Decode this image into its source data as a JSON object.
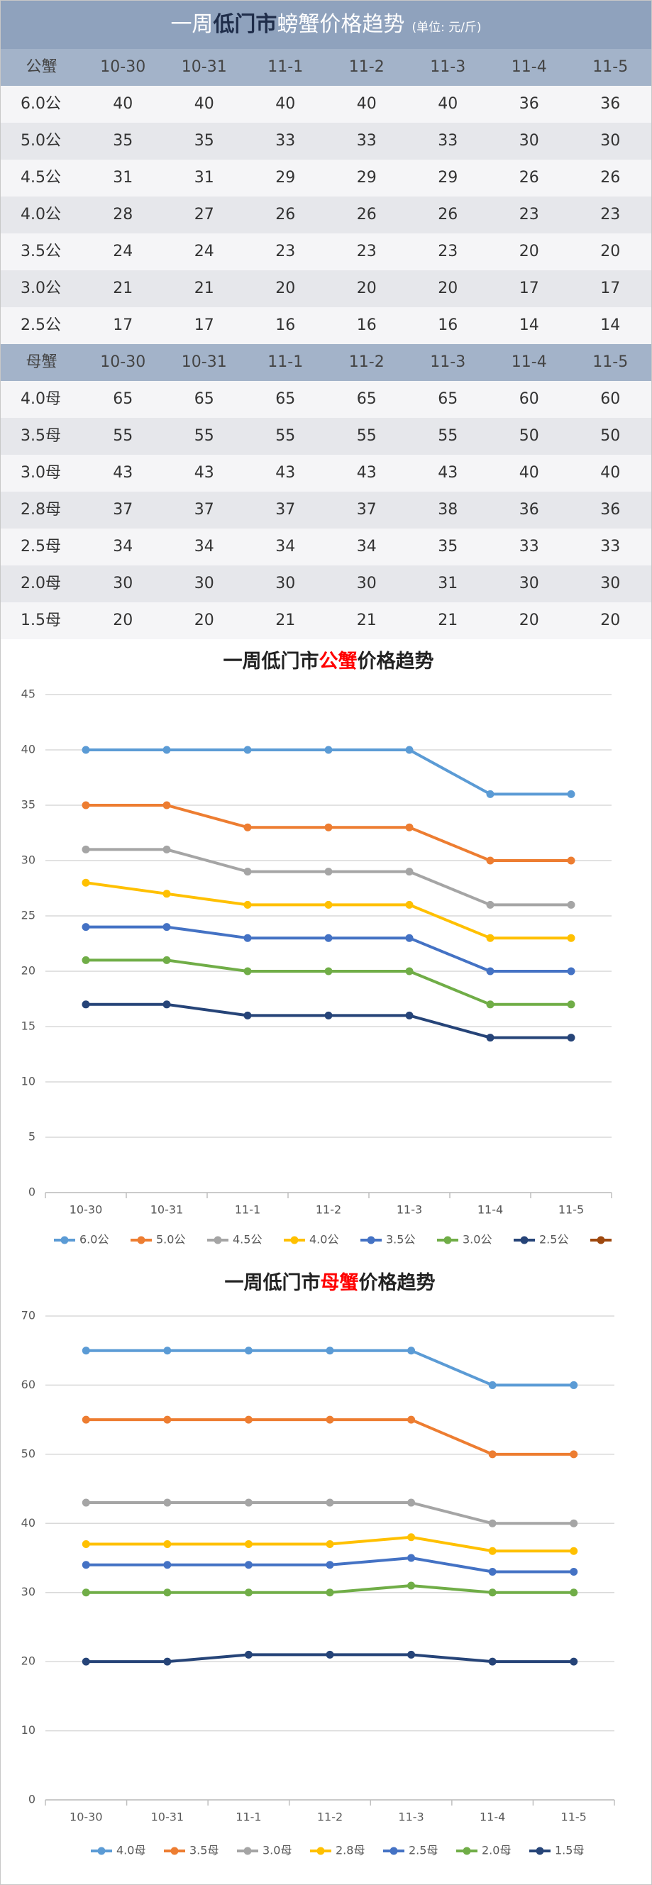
{
  "table": {
    "title": [
      "一周",
      "低门市",
      "螃蟹价格趋势"
    ],
    "unit": "(单位: 元/斤)",
    "sections": [
      {
        "columns": [
          "公蟹",
          "10-30",
          "10-31",
          "11-1",
          "11-2",
          "11-3",
          "11-4",
          "11-5"
        ],
        "rows": [
          {
            "label": "6.0公",
            "values": [
              40,
              40,
              40,
              40,
              40,
              36,
              36
            ]
          },
          {
            "label": "5.0公",
            "values": [
              35,
              35,
              33,
              33,
              33,
              30,
              30
            ]
          },
          {
            "label": "4.5公",
            "values": [
              31,
              31,
              29,
              29,
              29,
              26,
              26
            ]
          },
          {
            "label": "4.0公",
            "values": [
              28,
              27,
              26,
              26,
              26,
              23,
              23
            ]
          },
          {
            "label": "3.5公",
            "values": [
              24,
              24,
              23,
              23,
              23,
              20,
              20
            ]
          },
          {
            "label": "3.0公",
            "values": [
              21,
              21,
              20,
              20,
              20,
              17,
              17
            ]
          },
          {
            "label": "2.5公",
            "values": [
              17,
              17,
              16,
              16,
              16,
              14,
              14
            ]
          }
        ]
      },
      {
        "columns": [
          "母蟹",
          "10-30",
          "10-31",
          "11-1",
          "11-2",
          "11-3",
          "11-4",
          "11-5"
        ],
        "rows": [
          {
            "label": "4.0母",
            "values": [
              65,
              65,
              65,
              65,
              65,
              60,
              60
            ]
          },
          {
            "label": "3.5母",
            "values": [
              55,
              55,
              55,
              55,
              55,
              50,
              50
            ]
          },
          {
            "label": "3.0母",
            "values": [
              43,
              43,
              43,
              43,
              43,
              40,
              40
            ]
          },
          {
            "label": "2.8母",
            "values": [
              37,
              37,
              37,
              37,
              38,
              36,
              36
            ]
          },
          {
            "label": "2.5母",
            "values": [
              34,
              34,
              34,
              34,
              35,
              33,
              33
            ]
          },
          {
            "label": "2.0母",
            "values": [
              30,
              30,
              30,
              30,
              31,
              30,
              30
            ]
          },
          {
            "label": "1.5母",
            "values": [
              20,
              20,
              21,
              21,
              21,
              20,
              20
            ]
          }
        ]
      }
    ]
  },
  "chart_data": [
    {
      "type": "line",
      "title": [
        "一周低门市",
        "公蟹",
        "价格趋势"
      ],
      "categories": [
        "10-30",
        "10-31",
        "11-1",
        "11-2",
        "11-3",
        "11-4",
        "11-5"
      ],
      "series": [
        {
          "name": "6.0公",
          "color": "#5b9bd5",
          "values": [
            40,
            40,
            40,
            40,
            40,
            36,
            36
          ]
        },
        {
          "name": "5.0公",
          "color": "#ed7d31",
          "values": [
            35,
            35,
            33,
            33,
            33,
            30,
            30
          ]
        },
        {
          "name": "4.5公",
          "color": "#a5a5a5",
          "values": [
            31,
            31,
            29,
            29,
            29,
            26,
            26
          ]
        },
        {
          "name": "4.0公",
          "color": "#ffc000",
          "values": [
            28,
            27,
            26,
            26,
            26,
            23,
            23
          ]
        },
        {
          "name": "3.5公",
          "color": "#4472c4",
          "values": [
            24,
            24,
            23,
            23,
            23,
            20,
            20
          ]
        },
        {
          "name": "3.0公",
          "color": "#70ad47",
          "values": [
            21,
            21,
            20,
            20,
            20,
            17,
            17
          ]
        },
        {
          "name": "2.5公",
          "color": "#264478",
          "values": [
            17,
            17,
            16,
            16,
            16,
            14,
            14
          ]
        },
        {
          "name": null,
          "color": "#9e480e",
          "values": [
            null,
            null,
            null,
            null,
            null,
            null,
            null
          ]
        }
      ],
      "ylim": [
        0,
        45
      ],
      "yticks": [
        0,
        5,
        10,
        15,
        20,
        25,
        30,
        35,
        40,
        45
      ],
      "grid": true,
      "legend": "bottom"
    },
    {
      "type": "line",
      "title": [
        "一周低门市",
        "母蟹",
        "价格趋势"
      ],
      "categories": [
        "10-30",
        "10-31",
        "11-1",
        "11-2",
        "11-3",
        "11-4",
        "11-5"
      ],
      "series": [
        {
          "name": "4.0母",
          "color": "#5b9bd5",
          "values": [
            65,
            65,
            65,
            65,
            65,
            60,
            60
          ]
        },
        {
          "name": "3.5母",
          "color": "#ed7d31",
          "values": [
            55,
            55,
            55,
            55,
            55,
            50,
            50
          ]
        },
        {
          "name": "3.0母",
          "color": "#a5a5a5",
          "values": [
            43,
            43,
            43,
            43,
            43,
            40,
            40
          ]
        },
        {
          "name": "2.8母",
          "color": "#ffc000",
          "values": [
            37,
            37,
            37,
            37,
            38,
            36,
            36
          ]
        },
        {
          "name": "2.5母",
          "color": "#4472c4",
          "values": [
            34,
            34,
            34,
            34,
            35,
            33,
            33
          ]
        },
        {
          "name": "2.0母",
          "color": "#70ad47",
          "values": [
            30,
            30,
            30,
            30,
            31,
            30,
            30
          ]
        },
        {
          "name": "1.5母",
          "color": "#264478",
          "values": [
            20,
            20,
            21,
            21,
            21,
            20,
            20
          ]
        }
      ],
      "ylim": [
        0,
        70
      ],
      "yticks": [
        0,
        10,
        20,
        30,
        40,
        50,
        60,
        70
      ],
      "grid": true,
      "legend": "bottom"
    }
  ]
}
